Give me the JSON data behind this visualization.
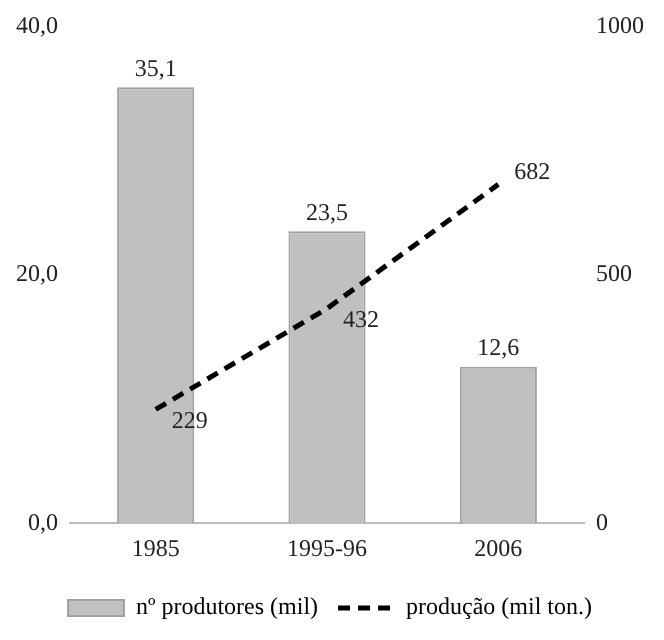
{
  "chart_data": {
    "type": "bar",
    "categories": [
      "1985",
      "1995-96",
      "2006"
    ],
    "series": [
      {
        "name": "nº produtores (mil)",
        "color": "#c0c0c0",
        "values": [
          35.1,
          23.5,
          12.6
        ],
        "value_labels": [
          "35,1",
          "23,5",
          "12,6"
        ]
      },
      {
        "name": "produção (mil ton.)",
        "type": "line",
        "axis": "y2",
        "color": "#000000",
        "line_style": "dashed",
        "marker": "none",
        "values": [
          229,
          432,
          682
        ],
        "value_labels": [
          "229",
          "432",
          "682"
        ]
      }
    ],
    "ylim": [
      0,
      40
    ],
    "yticks": [
      {
        "value": 0,
        "label": "0,0"
      },
      {
        "value": 20,
        "label": "20,0"
      },
      {
        "value": 40,
        "label": "40,0"
      }
    ],
    "y2lim": [
      0,
      1000
    ],
    "y2ticks": [
      0,
      500,
      1000
    ],
    "grid": false,
    "legend": "bottom"
  }
}
